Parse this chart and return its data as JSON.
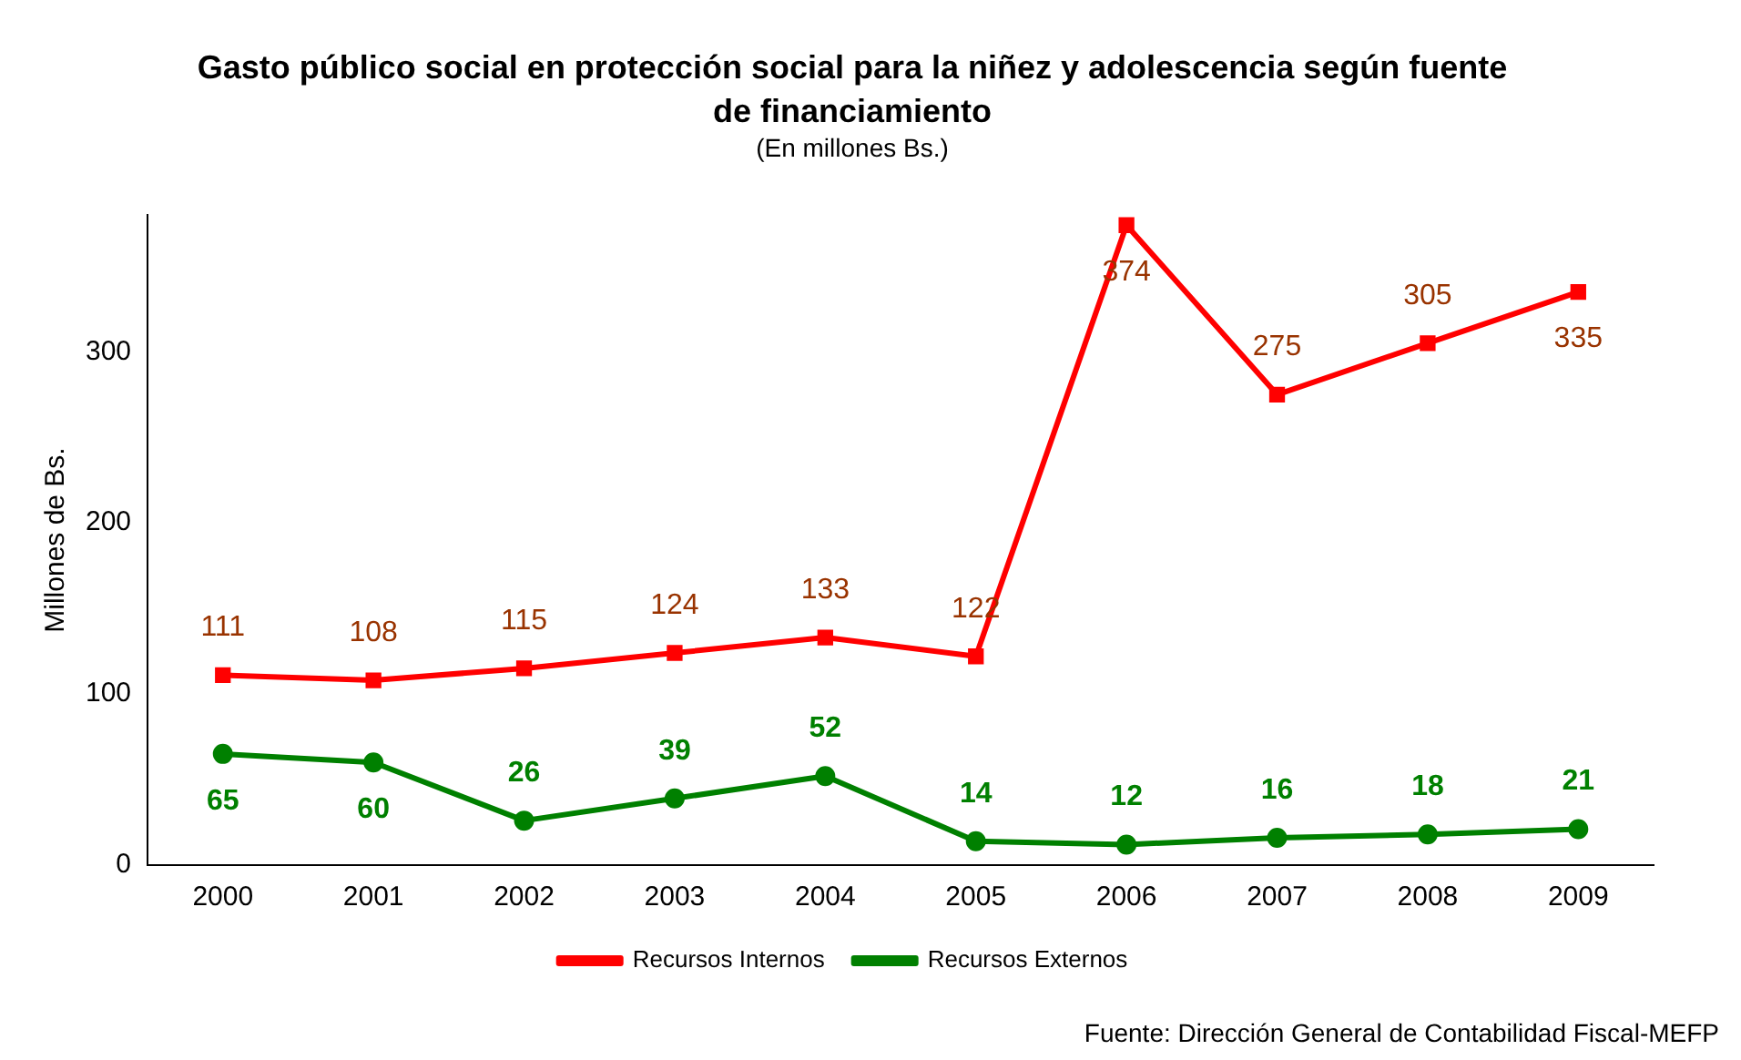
{
  "chart_data": {
    "type": "line",
    "title": "Gasto público social en protección social para la niñez y adolescencia según fuente de financiamiento",
    "subtitle": "(En millones Bs.)",
    "ylabel": "Millones de Bs.",
    "categories": [
      "2000",
      "2001",
      "2002",
      "2003",
      "2004",
      "2005",
      "2006",
      "2007",
      "2008",
      "2009"
    ],
    "series": [
      {
        "name": "Recursos Internos",
        "color": "#ff0000",
        "marker": "square",
        "values": [
          111,
          108,
          115,
          124,
          133,
          122,
          374,
          275,
          305,
          335
        ]
      },
      {
        "name": "Recursos Externos",
        "color": "#008000",
        "marker": "circle",
        "values": [
          65,
          60,
          26,
          39,
          52,
          14,
          12,
          16,
          18,
          21
        ]
      }
    ],
    "ylim": [
      0,
      380
    ],
    "yticks": [
      0,
      100,
      200,
      300
    ],
    "grid": false,
    "legend": "bottom",
    "data_labels": true,
    "line_style": "solid",
    "annotations": [
      "Fuente: Dirección General de Contabilidad Fiscal-MEFP"
    ]
  }
}
